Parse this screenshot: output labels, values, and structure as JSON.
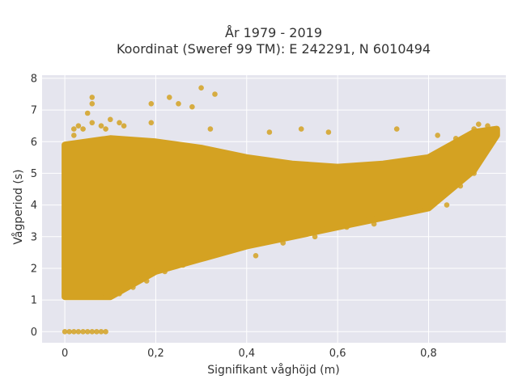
{
  "chart_data": {
    "type": "scatter",
    "title_line1": "År 1979 - 2019",
    "title_line2": "Koordinat (Sweref 99 TM): E 242291, N 6010494",
    "xlabel": "Signifikant våghöjd (m)",
    "ylabel": "Vågperiod (s)",
    "xlim": [
      -0.05,
      0.97
    ],
    "ylim": [
      -0.35,
      8.1
    ],
    "x_ticks": [
      0,
      0.2,
      0.4,
      0.6,
      0.8
    ],
    "x_tick_labels": [
      "0",
      "0,2",
      "0,4",
      "0,6",
      "0,8"
    ],
    "y_ticks": [
      0,
      1,
      2,
      3,
      4,
      5,
      6,
      7,
      8
    ],
    "y_tick_labels": [
      "0",
      "1",
      "2",
      "3",
      "4",
      "5",
      "6",
      "7",
      "8"
    ],
    "grid": true,
    "legend": "none",
    "colors": {
      "marker": "#D4A222",
      "plot_bg": "#E5E5EE",
      "grid": "#ffffff"
    },
    "note": "Dense point cloud approximated by band envelopes plus individual sample points",
    "dense_band": {
      "x": [
        0,
        0.1,
        0.2,
        0.3,
        0.4,
        0.5,
        0.6,
        0.7,
        0.8,
        0.9,
        0.95
      ],
      "y_low": [
        1.1,
        1.1,
        1.9,
        2.3,
        2.7,
        3.0,
        3.3,
        3.6,
        3.9,
        5.1,
        6.2
      ],
      "y_high": [
        5.9,
        6.1,
        6.0,
        5.8,
        5.5,
        5.3,
        5.2,
        5.3,
        5.5,
        6.3,
        6.4
      ]
    },
    "series": [
      {
        "points": [
          [
            0.0,
            0
          ],
          [
            0.01,
            0
          ],
          [
            0.02,
            0
          ],
          [
            0.03,
            0
          ],
          [
            0.04,
            0
          ],
          [
            0.05,
            0
          ],
          [
            0.06,
            0
          ],
          [
            0.07,
            0
          ],
          [
            0.08,
            0
          ],
          [
            0.09,
            0
          ],
          [
            0.0,
            1.2
          ],
          [
            0.0,
            1.5
          ],
          [
            0.0,
            1.8
          ],
          [
            0.0,
            2.0
          ],
          [
            0.0,
            3.3
          ],
          [
            0.0,
            3.7
          ],
          [
            0.0,
            4.2
          ],
          [
            0.0,
            4.4
          ],
          [
            0.0,
            4.8
          ],
          [
            0.0,
            5.0
          ],
          [
            0.02,
            6.2
          ],
          [
            0.02,
            6.4
          ],
          [
            0.03,
            6.5
          ],
          [
            0.04,
            6.4
          ],
          [
            0.05,
            6.9
          ],
          [
            0.06,
            6.6
          ],
          [
            0.08,
            6.5
          ],
          [
            0.06,
            7.2
          ],
          [
            0.06,
            7.4
          ],
          [
            0.09,
            6.4
          ],
          [
            0.12,
            6.6
          ],
          [
            0.13,
            6.5
          ],
          [
            0.1,
            6.7
          ],
          [
            0.19,
            6.6
          ],
          [
            0.19,
            7.2
          ],
          [
            0.23,
            7.4
          ],
          [
            0.25,
            7.2
          ],
          [
            0.28,
            7.1
          ],
          [
            0.3,
            7.7
          ],
          [
            0.33,
            7.5
          ],
          [
            0.32,
            6.4
          ],
          [
            0.45,
            6.3
          ],
          [
            0.52,
            6.4
          ],
          [
            0.58,
            6.3
          ],
          [
            0.73,
            6.4
          ],
          [
            0.82,
            6.2
          ],
          [
            0.86,
            6.1
          ],
          [
            0.9,
            6.4
          ],
          [
            0.91,
            6.55
          ],
          [
            0.93,
            6.5
          ],
          [
            0.94,
            6.3
          ],
          [
            0.05,
            1.3
          ],
          [
            0.08,
            1.1
          ],
          [
            0.1,
            1.1
          ],
          [
            0.12,
            1.2
          ],
          [
            0.15,
            1.4
          ],
          [
            0.18,
            1.6
          ],
          [
            0.22,
            1.9
          ],
          [
            0.26,
            2.1
          ],
          [
            0.3,
            2.3
          ],
          [
            0.35,
            2.5
          ],
          [
            0.42,
            2.4
          ],
          [
            0.48,
            2.8
          ],
          [
            0.55,
            3.0
          ],
          [
            0.62,
            3.3
          ],
          [
            0.68,
            3.4
          ],
          [
            0.72,
            3.7
          ],
          [
            0.78,
            3.9
          ],
          [
            0.84,
            4.0
          ],
          [
            0.87,
            4.6
          ],
          [
            0.9,
            5.0
          ]
        ]
      }
    ]
  }
}
